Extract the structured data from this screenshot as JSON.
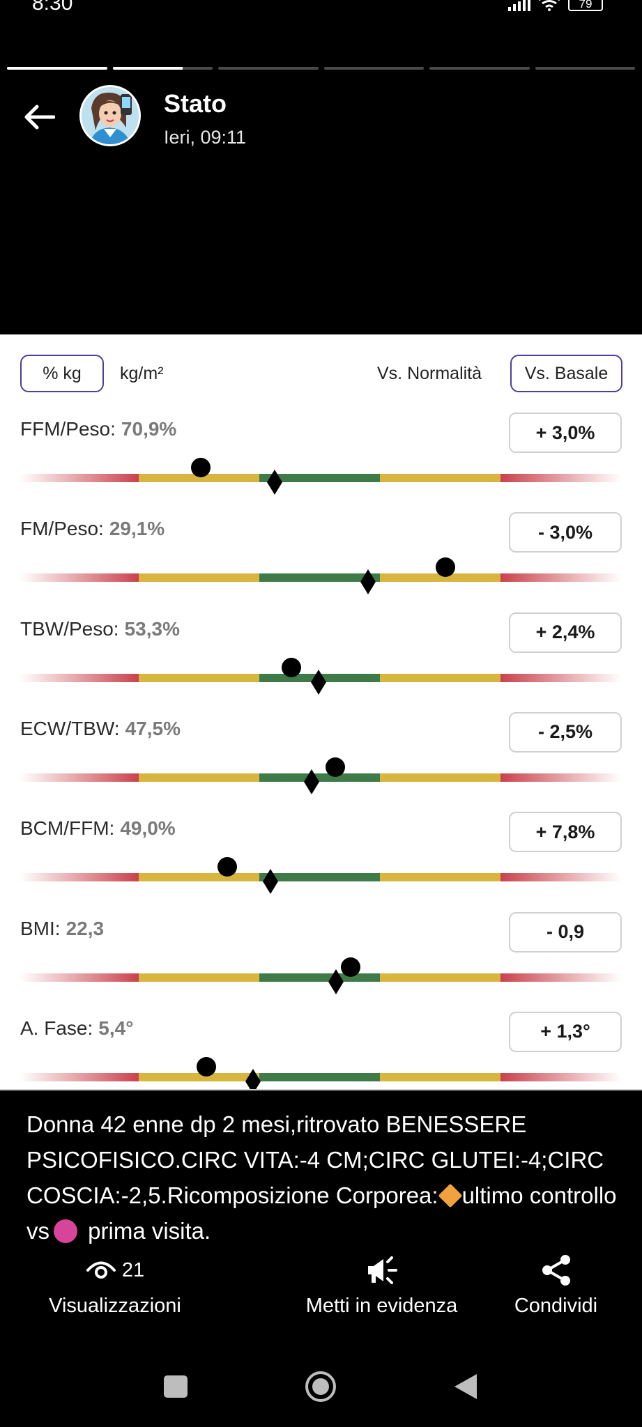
{
  "status_bar": {
    "time": "8:30",
    "battery": "79",
    "icons": [
      "signal-icon",
      "wifi-icon",
      "battery-icon"
    ]
  },
  "story": {
    "segments_total": 6,
    "active_segment": 2,
    "active_progress": 0.7
  },
  "header": {
    "title": "Stato",
    "timestamp": "Ieri, 09:11",
    "icons": [
      "back-arrow-icon",
      "avatar"
    ]
  },
  "toolbar": {
    "unit_percent_kg": "% kg",
    "unit_kg_m2": "kg/m²",
    "vs_normalita": "Vs. Normalità",
    "vs_basale": "Vs. Basale"
  },
  "colors": {
    "red": "#c9424c",
    "yellow": "#d8b53f",
    "green": "#3f7a49",
    "chip_border": "#4b3fa0",
    "diamond_emoji": "#f2a23c",
    "dot_emoji": "#d7459a"
  },
  "metrics": [
    {
      "label": "FFM/Peso:",
      "value": "70,9%",
      "delta": "+ 3,0%",
      "dot": 0.3,
      "diamond": 0.423
    },
    {
      "label": "FM/Peso:",
      "value": "29,1%",
      "delta": "- 3,0%",
      "dot": 0.708,
      "diamond": 0.579
    },
    {
      "label": "TBW/Peso:",
      "value": "53,3%",
      "delta": "+ 2,4%",
      "dot": 0.451,
      "diamond": 0.497
    },
    {
      "label": "ECW/TBW:",
      "value": "47,5%",
      "delta": "- 2,5%",
      "dot": 0.524,
      "diamond": 0.485
    },
    {
      "label": "BCM/FFM:",
      "value": "49,0%",
      "delta": "+ 7,8%",
      "dot": 0.344,
      "diamond": 0.416
    },
    {
      "label": "BMI:",
      "value": "22,3",
      "delta": "- 0,9",
      "dot": 0.55,
      "diamond": 0.525
    },
    {
      "label": "A. Fase:",
      "value": "5,4°",
      "delta": "+ 1,3°",
      "dot": 0.31,
      "diamond": 0.388
    }
  ],
  "caption": {
    "part1": "Donna 42 enne dp 2 mesi,ritrovato BENESSERE PSICOFISICO.CIRC VITA:-4 CM;CIRC GLUTEI:-4;CIRC COSCIA:-2,5.Ricomposizione Corporea:",
    "part2": "ultimo controllo vs",
    "part3": " prima visita."
  },
  "actions": {
    "views_count": "21",
    "views_label": "Visualizzazioni",
    "highlight_label": "Metti in evidenza",
    "share_label": "Condividi"
  },
  "navbar": {
    "icons": [
      "recents-icon",
      "home-icon",
      "back-icon"
    ]
  }
}
